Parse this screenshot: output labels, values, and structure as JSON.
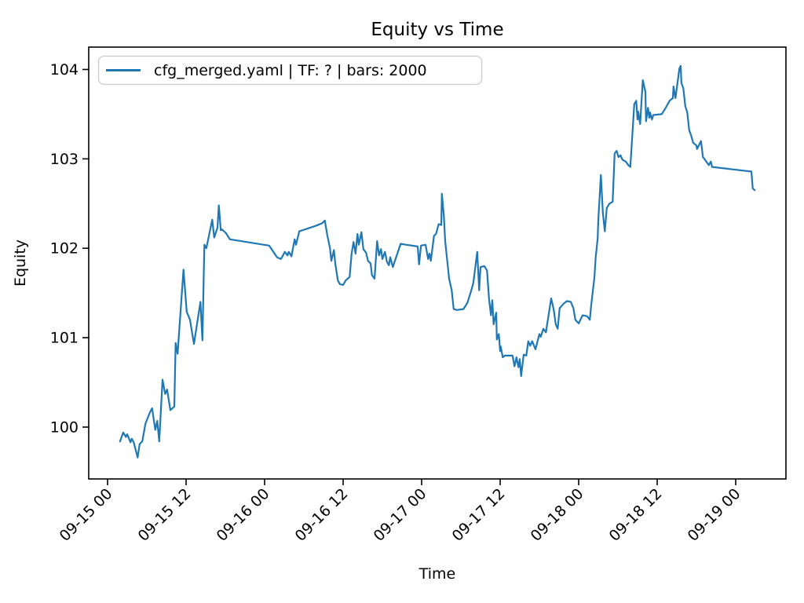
{
  "figure": {
    "title": "Equity vs Time",
    "background": "#ffffff"
  },
  "chart_data": {
    "type": "line",
    "title": "Equity vs Time",
    "xlabel": "Time",
    "ylabel": "Equity",
    "grid": false,
    "legend_position": "upper left",
    "legend": [
      {
        "label": "cfg_merged.yaml | TF: ? | bars: 2000",
        "color": "#1f77b4"
      }
    ],
    "x_unit": "hours since 09-15 00:00",
    "xlim_hours": [
      -2.88,
      103.68
    ],
    "ylim": [
      99.42,
      104.25
    ],
    "xticks": [
      {
        "t": 0,
        "label": "09-15 00"
      },
      {
        "t": 12,
        "label": "09-15 12"
      },
      {
        "t": 24,
        "label": "09-16 00"
      },
      {
        "t": 36,
        "label": "09-16 12"
      },
      {
        "t": 48,
        "label": "09-17 00"
      },
      {
        "t": 60,
        "label": "09-17 12"
      },
      {
        "t": 72,
        "label": "09-18 00"
      },
      {
        "t": 84,
        "label": "09-18 12"
      },
      {
        "t": 96,
        "label": "09-19 00"
      }
    ],
    "yticks": [
      {
        "v": 100,
        "label": "100"
      },
      {
        "v": 101,
        "label": "101"
      },
      {
        "v": 102,
        "label": "102"
      },
      {
        "v": 103,
        "label": "103"
      },
      {
        "v": 104,
        "label": "104"
      }
    ],
    "series": [
      {
        "name": "cfg_merged.yaml | TF: ? | bars: 2000",
        "color": "#1f77b4",
        "line_width": 2.2,
        "points": [
          [
            1.9,
            99.84
          ],
          [
            2.4,
            99.94
          ],
          [
            2.8,
            99.89
          ],
          [
            3.0,
            99.92
          ],
          [
            3.5,
            99.83
          ],
          [
            3.7,
            99.87
          ],
          [
            4.0,
            99.83
          ],
          [
            4.6,
            99.66
          ],
          [
            4.9,
            99.81
          ],
          [
            5.3,
            99.84
          ],
          [
            5.8,
            100.04
          ],
          [
            6.5,
            100.17
          ],
          [
            6.8,
            100.21
          ],
          [
            7.3,
            99.97
          ],
          [
            7.6,
            100.07
          ],
          [
            7.9,
            99.84
          ],
          [
            8.4,
            100.53
          ],
          [
            8.8,
            100.37
          ],
          [
            9.1,
            100.42
          ],
          [
            9.6,
            100.19
          ],
          [
            10.2,
            100.23
          ],
          [
            10.4,
            100.94
          ],
          [
            10.7,
            100.82
          ],
          [
            11.6,
            101.76
          ],
          [
            12.1,
            101.29
          ],
          [
            12.6,
            101.2
          ],
          [
            13.2,
            100.93
          ],
          [
            14.2,
            101.4
          ],
          [
            14.5,
            100.97
          ],
          [
            14.8,
            102.04
          ],
          [
            15.1,
            102.0
          ],
          [
            16.0,
            102.32
          ],
          [
            16.3,
            102.12
          ],
          [
            16.8,
            102.23
          ],
          [
            17.0,
            102.48
          ],
          [
            17.3,
            102.2
          ],
          [
            17.5,
            102.21
          ],
          [
            18.1,
            102.17
          ],
          [
            18.7,
            102.1
          ],
          [
            24.7,
            102.03
          ],
          [
            25.9,
            101.9
          ],
          [
            26.5,
            101.88
          ],
          [
            27.1,
            101.96
          ],
          [
            27.5,
            101.92
          ],
          [
            27.7,
            101.96
          ],
          [
            28.1,
            101.91
          ],
          [
            28.6,
            102.1
          ],
          [
            28.8,
            102.04
          ],
          [
            29.3,
            102.19
          ],
          [
            31.8,
            102.25
          ],
          [
            32.8,
            102.28
          ],
          [
            33.2,
            102.31
          ],
          [
            33.6,
            102.14
          ],
          [
            34.0,
            102.0
          ],
          [
            34.2,
            101.86
          ],
          [
            34.6,
            101.98
          ],
          [
            34.8,
            101.83
          ],
          [
            35.2,
            101.64
          ],
          [
            35.5,
            101.6
          ],
          [
            36.0,
            101.59
          ],
          [
            36.4,
            101.64
          ],
          [
            37.0,
            101.68
          ],
          [
            37.3,
            101.94
          ],
          [
            37.6,
            102.07
          ],
          [
            37.9,
            101.94
          ],
          [
            38.2,
            102.16
          ],
          [
            38.4,
            102.04
          ],
          [
            38.8,
            102.18
          ],
          [
            39.1,
            101.99
          ],
          [
            39.5,
            101.95
          ],
          [
            39.8,
            101.86
          ],
          [
            40.2,
            101.83
          ],
          [
            40.4,
            101.7
          ],
          [
            40.8,
            101.66
          ],
          [
            41.2,
            102.08
          ],
          [
            41.5,
            101.92
          ],
          [
            41.8,
            101.99
          ],
          [
            42.0,
            101.88
          ],
          [
            42.4,
            101.96
          ],
          [
            42.7,
            101.85
          ],
          [
            43.0,
            101.81
          ],
          [
            43.2,
            101.9
          ],
          [
            43.6,
            101.79
          ],
          [
            44.8,
            102.05
          ],
          [
            45.6,
            102.04
          ],
          [
            47.4,
            102.02
          ],
          [
            47.6,
            101.82
          ],
          [
            47.9,
            102.03
          ],
          [
            48.6,
            102.04
          ],
          [
            49.0,
            101.88
          ],
          [
            49.2,
            101.94
          ],
          [
            49.4,
            101.86
          ],
          [
            49.9,
            102.14
          ],
          [
            50.2,
            102.16
          ],
          [
            50.6,
            102.27
          ],
          [
            51.0,
            102.26
          ],
          [
            51.1,
            102.61
          ],
          [
            51.4,
            102.36
          ],
          [
            51.6,
            102.08
          ],
          [
            52.2,
            101.66
          ],
          [
            52.6,
            101.53
          ],
          [
            52.9,
            101.32
          ],
          [
            53.4,
            101.31
          ],
          [
            54.4,
            101.32
          ],
          [
            55.0,
            101.39
          ],
          [
            55.6,
            101.53
          ],
          [
            55.9,
            101.61
          ],
          [
            56.5,
            101.96
          ],
          [
            56.8,
            101.53
          ],
          [
            57.0,
            101.79
          ],
          [
            57.6,
            101.8
          ],
          [
            58.0,
            101.75
          ],
          [
            58.3,
            101.44
          ],
          [
            58.6,
            101.25
          ],
          [
            58.8,
            101.42
          ],
          [
            59.0,
            101.15
          ],
          [
            59.4,
            101.28
          ],
          [
            59.5,
            100.98
          ],
          [
            59.8,
            101.04
          ],
          [
            60.0,
            100.85
          ],
          [
            60.1,
            100.9
          ],
          [
            60.4,
            100.78
          ],
          [
            60.7,
            100.8
          ],
          [
            61.9,
            100.8
          ],
          [
            62.2,
            100.68
          ],
          [
            62.5,
            100.78
          ],
          [
            62.8,
            100.67
          ],
          [
            63.0,
            100.76
          ],
          [
            63.2,
            100.57
          ],
          [
            63.6,
            100.81
          ],
          [
            64.0,
            100.8
          ],
          [
            64.3,
            100.96
          ],
          [
            64.6,
            100.91
          ],
          [
            64.9,
            100.96
          ],
          [
            65.4,
            100.87
          ],
          [
            66.0,
            101.04
          ],
          [
            66.2,
            101.01
          ],
          [
            66.6,
            101.1
          ],
          [
            67.0,
            101.06
          ],
          [
            67.8,
            101.44
          ],
          [
            68.2,
            101.31
          ],
          [
            68.5,
            101.15
          ],
          [
            68.8,
            101.1
          ],
          [
            69.1,
            101.33
          ],
          [
            69.7,
            101.38
          ],
          [
            70.2,
            101.41
          ],
          [
            70.8,
            101.4
          ],
          [
            71.2,
            101.33
          ],
          [
            71.5,
            101.2
          ],
          [
            72.0,
            101.16
          ],
          [
            72.6,
            101.25
          ],
          [
            73.3,
            101.24
          ],
          [
            73.7,
            101.2
          ],
          [
            73.9,
            101.35
          ],
          [
            74.4,
            101.67
          ],
          [
            74.6,
            101.9
          ],
          [
            74.9,
            102.11
          ],
          [
            75.0,
            102.31
          ],
          [
            75.4,
            102.82
          ],
          [
            75.7,
            102.4
          ],
          [
            76.0,
            102.19
          ],
          [
            76.3,
            102.45
          ],
          [
            76.7,
            102.5
          ],
          [
            77.2,
            102.52
          ],
          [
            77.5,
            103.06
          ],
          [
            77.8,
            103.09
          ],
          [
            78.1,
            103.02
          ],
          [
            78.4,
            103.04
          ],
          [
            78.7,
            102.99
          ],
          [
            79.2,
            102.97
          ],
          [
            79.6,
            102.93
          ],
          [
            79.9,
            102.91
          ],
          [
            80.5,
            103.61
          ],
          [
            80.8,
            103.65
          ],
          [
            81.0,
            103.44
          ],
          [
            81.1,
            103.53
          ],
          [
            81.4,
            103.39
          ],
          [
            81.8,
            103.88
          ],
          [
            82.2,
            103.75
          ],
          [
            82.3,
            103.42
          ],
          [
            82.6,
            103.57
          ],
          [
            82.8,
            103.46
          ],
          [
            82.9,
            103.52
          ],
          [
            83.2,
            103.44
          ],
          [
            83.4,
            103.49
          ],
          [
            84.7,
            103.5
          ],
          [
            85.3,
            103.57
          ],
          [
            85.9,
            103.65
          ],
          [
            86.4,
            103.68
          ],
          [
            86.5,
            103.81
          ],
          [
            86.8,
            103.68
          ],
          [
            87.4,
            104.01
          ],
          [
            87.6,
            104.04
          ],
          [
            87.7,
            103.85
          ],
          [
            88.0,
            103.79
          ],
          [
            88.3,
            103.59
          ],
          [
            88.6,
            103.52
          ],
          [
            88.9,
            103.32
          ],
          [
            89.2,
            103.26
          ],
          [
            89.5,
            103.18
          ],
          [
            90.0,
            103.15
          ],
          [
            90.1,
            103.11
          ],
          [
            90.7,
            103.2
          ],
          [
            91.0,
            103.02
          ],
          [
            91.2,
            103.0
          ],
          [
            91.9,
            102.93
          ],
          [
            92.2,
            102.97
          ],
          [
            92.4,
            102.91
          ],
          [
            98.2,
            102.86
          ],
          [
            98.4,
            102.86
          ],
          [
            98.6,
            102.67
          ],
          [
            98.9,
            102.65
          ]
        ]
      }
    ]
  }
}
